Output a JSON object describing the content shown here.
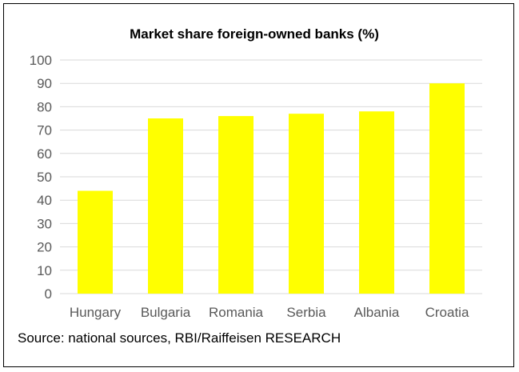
{
  "chart_data": {
    "type": "bar",
    "title": "Market share foreign-owned banks (%)",
    "xlabel": "",
    "ylabel": "",
    "categories": [
      "Hungary",
      "Bulgaria",
      "Romania",
      "Serbia",
      "Albania",
      "Croatia"
    ],
    "values": [
      44,
      75,
      76,
      77,
      78,
      90
    ],
    "ylim": [
      0,
      100
    ],
    "yticks": [
      0,
      10,
      20,
      30,
      40,
      50,
      60,
      70,
      80,
      90,
      100
    ],
    "grid": true,
    "legend": "none",
    "bar_color": "#FFFF00",
    "grid_color": "#D9D9D9"
  },
  "source": "Source: national sources, RBI/Raiffeisen RESEARCH"
}
